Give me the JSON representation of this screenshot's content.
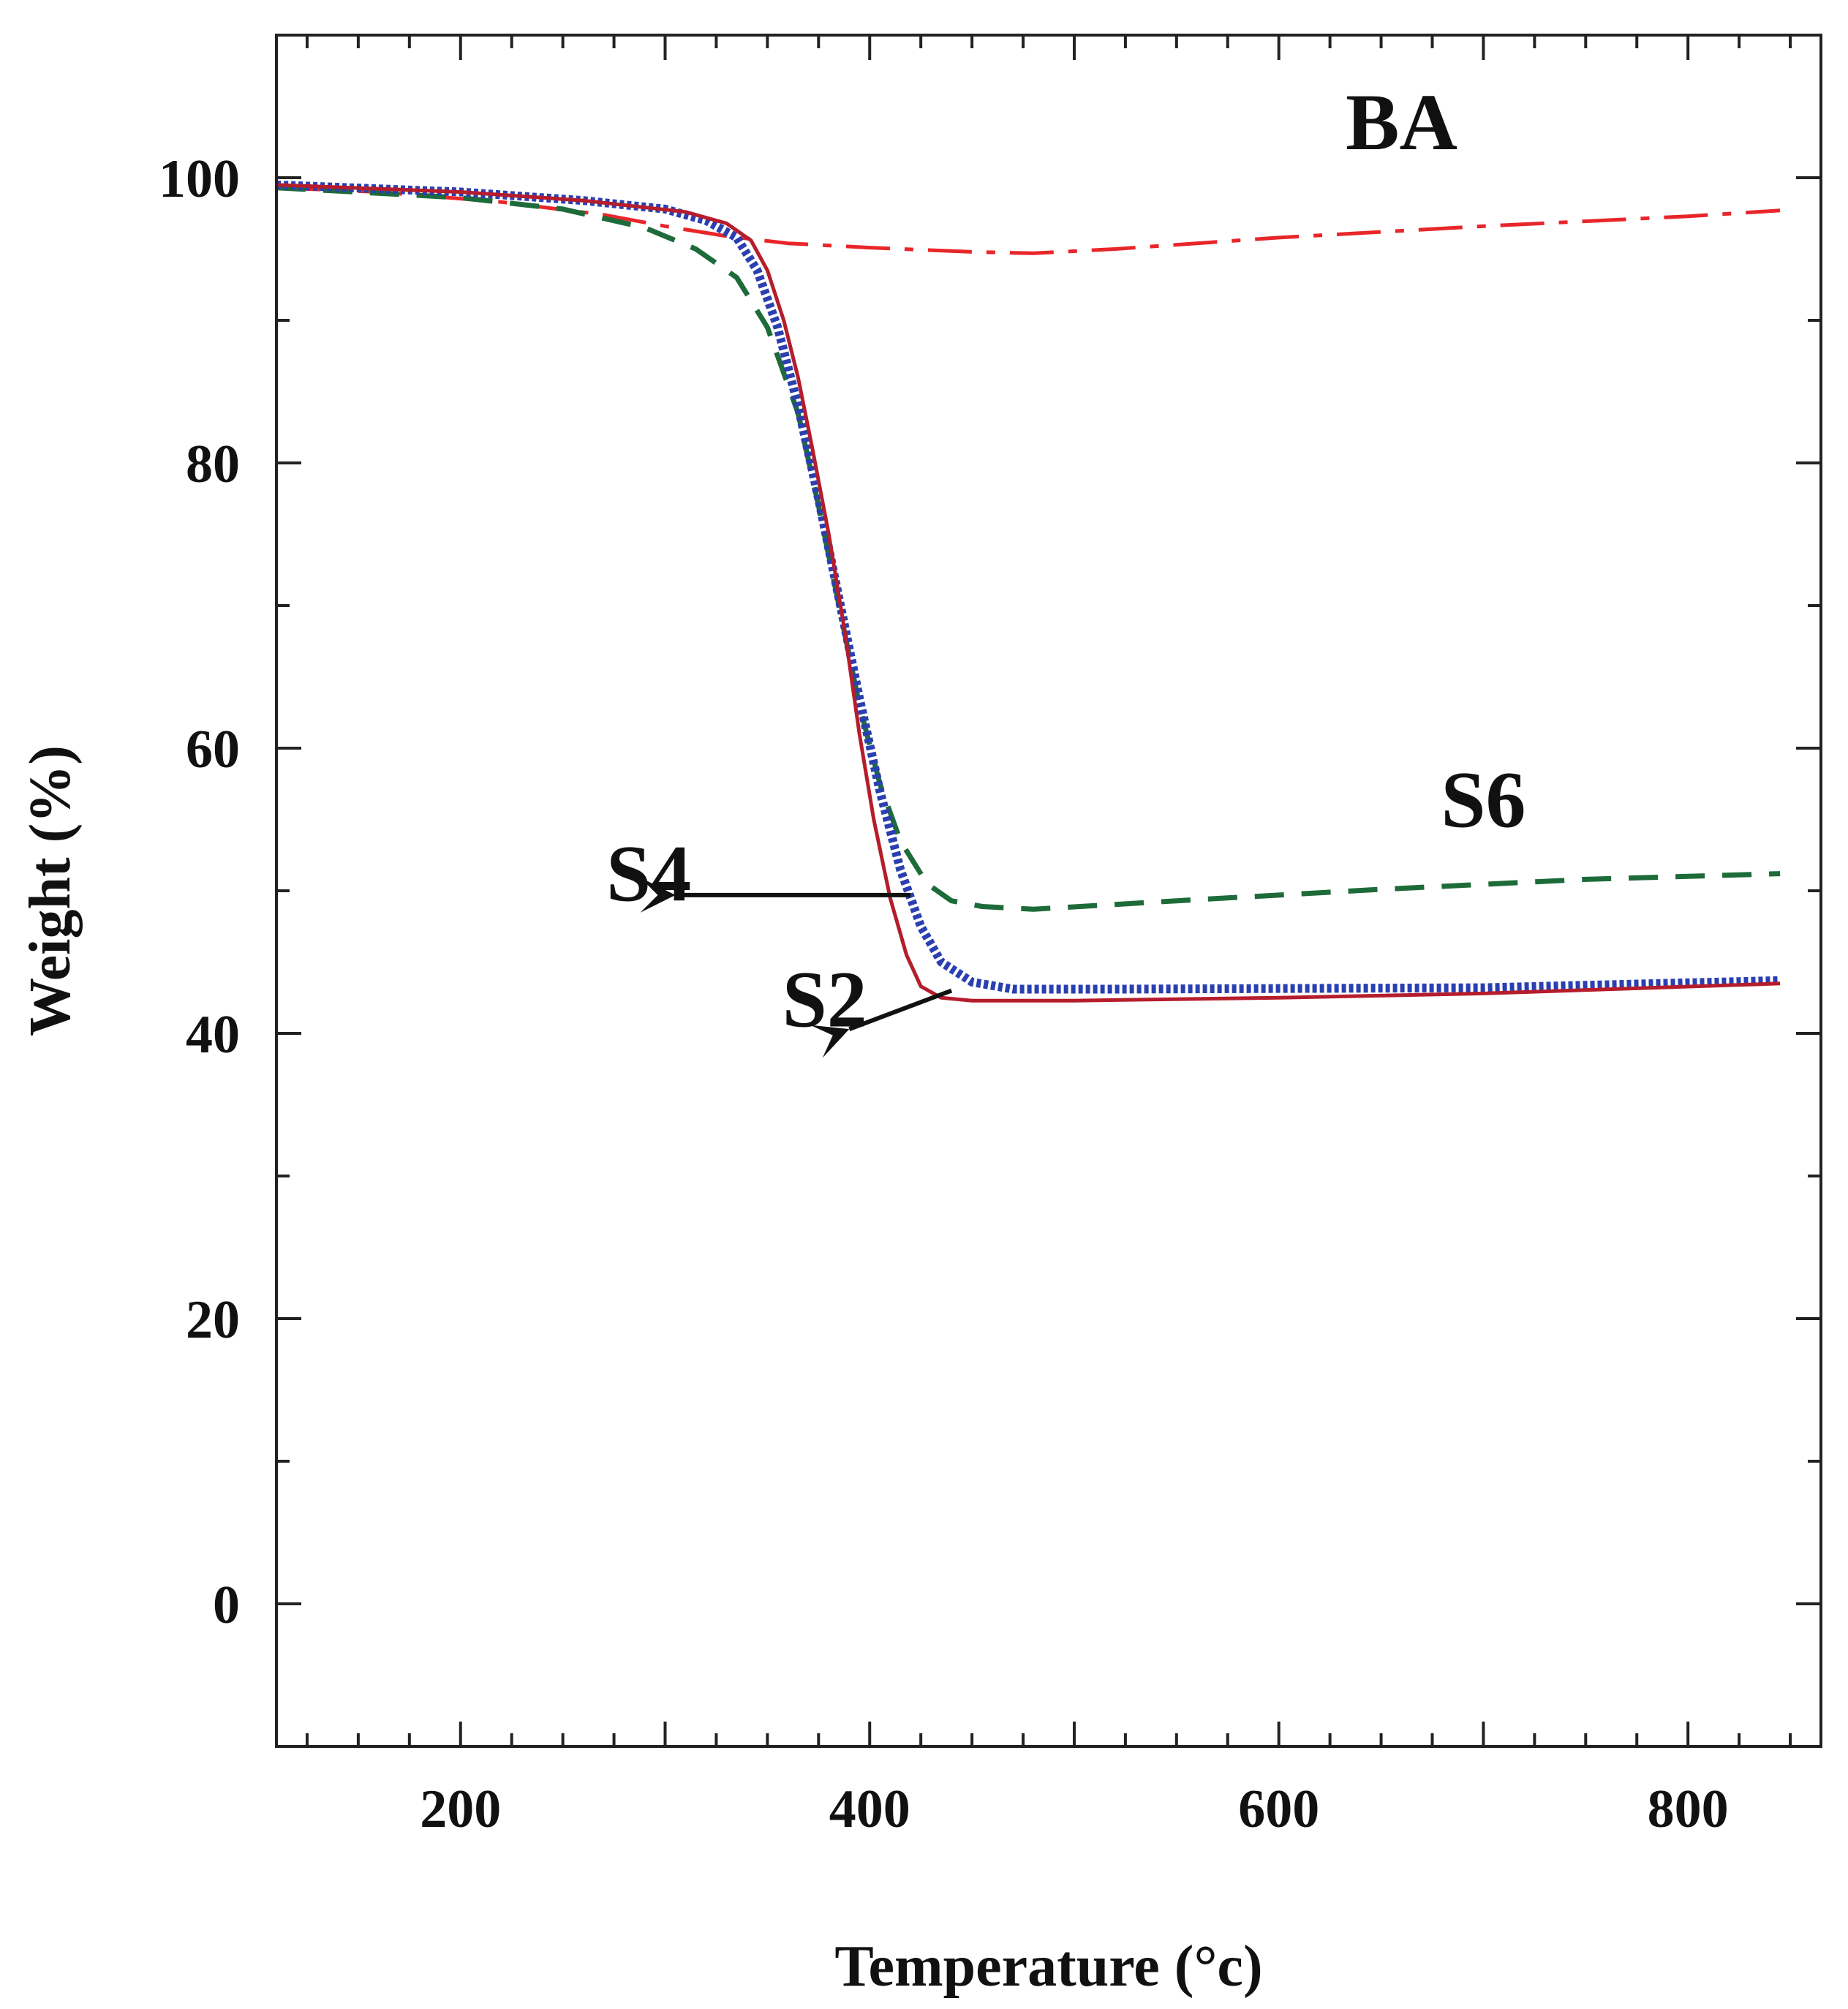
{
  "chart_data": {
    "type": "line",
    "title": "",
    "xlabel": "Temperature (°c)",
    "ylabel": "Weight (%)",
    "xlim": [
      110,
      865
    ],
    "ylim": [
      -10,
      110
    ],
    "xticks": [
      200,
      400,
      600,
      800
    ],
    "yticks": [
      0,
      20,
      40,
      60,
      80,
      100
    ],
    "x_minor_step": 25,
    "y_minor_step": 10,
    "grid": false,
    "series": [
      {
        "name": "BA",
        "color": "#e8262a",
        "style": "dashdot",
        "points": [
          [
            110,
            99.3
          ],
          [
            160,
            99.0
          ],
          [
            220,
            98.3
          ],
          [
            270,
            97.4
          ],
          [
            300,
            96.6
          ],
          [
            330,
            95.9
          ],
          [
            360,
            95.4
          ],
          [
            400,
            95.1
          ],
          [
            450,
            94.8
          ],
          [
            480,
            94.7
          ],
          [
            520,
            95.0
          ],
          [
            600,
            95.8
          ],
          [
            700,
            96.6
          ],
          [
            800,
            97.3
          ],
          [
            845,
            97.7
          ]
        ]
      },
      {
        "name": "S6",
        "color": "#1e6b3a",
        "style": "dashed",
        "points": [
          [
            110,
            99.3
          ],
          [
            200,
            98.6
          ],
          [
            250,
            97.8
          ],
          [
            290,
            96.5
          ],
          [
            315,
            95.0
          ],
          [
            335,
            93.0
          ],
          [
            350,
            89.5
          ],
          [
            365,
            83.5
          ],
          [
            375,
            77.0
          ],
          [
            385,
            70.0
          ],
          [
            395,
            63.0
          ],
          [
            405,
            57.5
          ],
          [
            415,
            53.5
          ],
          [
            428,
            50.5
          ],
          [
            440,
            49.3
          ],
          [
            455,
            48.9
          ],
          [
            480,
            48.7
          ],
          [
            550,
            49.3
          ],
          [
            650,
            50.1
          ],
          [
            750,
            50.8
          ],
          [
            845,
            51.2
          ]
        ]
      },
      {
        "name": "S4",
        "color": "#2a3fb0",
        "style": "dotted-thick",
        "points": [
          [
            110,
            99.5
          ],
          [
            200,
            99.0
          ],
          [
            260,
            98.4
          ],
          [
            300,
            97.8
          ],
          [
            320,
            97.0
          ],
          [
            335,
            95.8
          ],
          [
            345,
            93.5
          ],
          [
            355,
            89.5
          ],
          [
            365,
            84.0
          ],
          [
            375,
            77.5
          ],
          [
            385,
            70.5
          ],
          [
            395,
            63.5
          ],
          [
            405,
            57.0
          ],
          [
            415,
            51.5
          ],
          [
            425,
            47.5
          ],
          [
            435,
            45.0
          ],
          [
            450,
            43.6
          ],
          [
            470,
            43.1
          ],
          [
            520,
            43.1
          ],
          [
            700,
            43.2
          ],
          [
            845,
            43.7
          ]
        ]
      },
      {
        "name": "S2",
        "color": "#b51d2c",
        "style": "solid",
        "points": [
          [
            110,
            99.5
          ],
          [
            200,
            99.0
          ],
          [
            260,
            98.4
          ],
          [
            310,
            97.6
          ],
          [
            330,
            96.8
          ],
          [
            342,
            95.6
          ],
          [
            350,
            93.5
          ],
          [
            358,
            90.0
          ],
          [
            365,
            86.0
          ],
          [
            372,
            81.0
          ],
          [
            380,
            75.0
          ],
          [
            388,
            68.0
          ],
          [
            395,
            61.0
          ],
          [
            402,
            55.0
          ],
          [
            410,
            49.5
          ],
          [
            418,
            45.5
          ],
          [
            425,
            43.3
          ],
          [
            435,
            42.5
          ],
          [
            450,
            42.3
          ],
          [
            500,
            42.3
          ],
          [
            600,
            42.5
          ],
          [
            700,
            42.8
          ],
          [
            845,
            43.5
          ]
        ]
      }
    ],
    "annotations": [
      {
        "text": "BA",
        "x": 660,
        "y": 102.0
      },
      {
        "text": "S6",
        "x": 700,
        "y": 54.5
      },
      {
        "text": "S4",
        "x": 292,
        "y": 49.3,
        "arrow_from": [
          420,
          49.7
        ],
        "arrow_to": [
          305,
          49.7
        ]
      },
      {
        "text": "S2",
        "x": 378,
        "y": 40.5,
        "arrow_from": [
          440,
          43.0
        ],
        "arrow_to": [
          390,
          40.3
        ]
      }
    ]
  }
}
